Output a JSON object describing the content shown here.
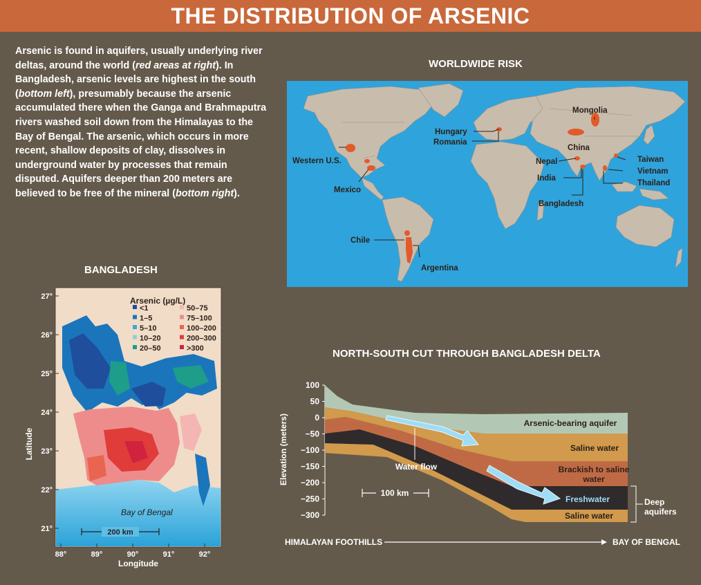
{
  "title": "THE DISTRIBUTION OF ARSENIC",
  "intro": {
    "p1": "Arsenic is found in aquifers, usually underlying river deltas, around the world (",
    "p1_em": "red areas at right",
    "p2": "). In Bangladesh, arsenic levels are highest in the south (",
    "p2_em": "bottom left",
    "p3": "), presumably because the arsenic accumulated there when the Ganga and Brahmaputra rivers washed soil down from the Himalayas to the Bay of Bengal. The arsenic, which occurs in more recent, shallow deposits of clay, dissolves in underground water by processes that remain disputed. Aquifers deeper than 200 meters are believed to be free of the mineral (",
    "p3_em": "bottom right",
    "p4": ")."
  },
  "world": {
    "title": "WORLDWIDE RISK",
    "labels": [
      "Mongolia",
      "Hungary",
      "Romania",
      "China",
      "Western U.S.",
      "Nepal",
      "Taiwan",
      "Vietnam",
      "India",
      "Thailand",
      "Mexico",
      "Bangladesh",
      "Chile",
      "Argentina"
    ],
    "colors": {
      "ocean": "#2fa3dc",
      "land": "#c8bcad",
      "risk": "#e25a2b"
    }
  },
  "bangladesh": {
    "title": "BANGLADESH",
    "legend_title": "Arsenic (µg/L)",
    "legend": [
      {
        "label": "<1",
        "color": "#1f4e9c"
      },
      {
        "label": "50–75",
        "color": "#f4b6b3"
      },
      {
        "label": "1–5",
        "color": "#1b75bb"
      },
      {
        "label": "75–100",
        "color": "#ee8c8c"
      },
      {
        "label": "5–10",
        "color": "#3aa9d8"
      },
      {
        "label": "100–200",
        "color": "#e9654f"
      },
      {
        "label": "10–20",
        "color": "#8fd0d8"
      },
      {
        "label": "200–300",
        "color": "#e03c3a"
      },
      {
        "label": "20–50",
        "color": "#1d9d8a"
      },
      {
        "label": ">300",
        "color": "#d1223e"
      }
    ],
    "lat_ticks": [
      "27°",
      "26°",
      "25°",
      "24°",
      "23°",
      "22°",
      "21°"
    ],
    "lon_ticks": [
      "88°",
      "89°",
      "90°",
      "91°",
      "92°"
    ],
    "xlabel": "Longitude",
    "ylabel": "Latitude",
    "bay": "Bay of Bengal",
    "scale": "200 km"
  },
  "cut": {
    "title": "NORTH-SOUTH CUT THROUGH BANGLADESH DELTA",
    "y_ticks": [
      "100",
      "50",
      "0",
      "−50",
      "−100",
      "−150",
      "−200",
      "−250",
      "−300"
    ],
    "ylabel": "Elevation (meters)",
    "layers": {
      "arsenic": "Arsenic-bearing aquifer",
      "saline1": "Saline water",
      "brackish": "Brackish to saline water",
      "fresh": "Freshwater",
      "saline2": "Saline water"
    },
    "water_flow": "Water flow",
    "scale": "100 km",
    "deep": "Deep aquifers",
    "left_label": "HIMALAYAN FOOTHILLS",
    "right_label": "BAY OF BENGAL"
  }
}
